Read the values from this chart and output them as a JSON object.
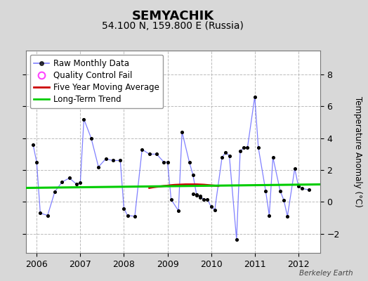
{
  "title": "SEMYACHIK",
  "subtitle": "54.100 N, 159.800 E (Russia)",
  "ylabel": "Temperature Anomaly (°C)",
  "watermark": "Berkeley Earth",
  "background_color": "#d8d8d8",
  "plot_bg_color": "#ffffff",
  "ylim": [
    -3.2,
    9.5
  ],
  "yticks": [
    -2,
    0,
    2,
    4,
    6,
    8
  ],
  "xlim": [
    2005.75,
    2012.5
  ],
  "raw_data": [
    [
      2005.917,
      3.6
    ],
    [
      2006.0,
      2.5
    ],
    [
      2006.083,
      -0.7
    ],
    [
      2006.25,
      -0.85
    ],
    [
      2006.417,
      0.65
    ],
    [
      2006.583,
      1.25
    ],
    [
      2006.75,
      1.5
    ],
    [
      2006.917,
      1.1
    ],
    [
      2007.0,
      1.2
    ],
    [
      2007.083,
      5.2
    ],
    [
      2007.25,
      4.0
    ],
    [
      2007.417,
      2.2
    ],
    [
      2007.583,
      2.7
    ],
    [
      2007.75,
      2.6
    ],
    [
      2007.917,
      2.6
    ],
    [
      2008.0,
      -0.4
    ],
    [
      2008.083,
      -0.85
    ],
    [
      2008.25,
      -0.9
    ],
    [
      2008.417,
      3.3
    ],
    [
      2008.583,
      3.0
    ],
    [
      2008.75,
      3.0
    ],
    [
      2008.917,
      2.5
    ],
    [
      2009.0,
      2.5
    ],
    [
      2009.083,
      0.15
    ],
    [
      2009.25,
      -0.55
    ],
    [
      2009.333,
      4.4
    ],
    [
      2009.5,
      2.5
    ],
    [
      2009.583,
      1.7
    ],
    [
      2009.667,
      0.45
    ],
    [
      2009.75,
      0.35
    ],
    [
      2009.833,
      0.15
    ],
    [
      2009.917,
      0.15
    ],
    [
      2010.0,
      -0.3
    ],
    [
      2010.083,
      -0.5
    ],
    [
      2010.25,
      2.8
    ],
    [
      2010.333,
      3.1
    ],
    [
      2010.417,
      2.9
    ],
    [
      2010.583,
      -2.35
    ],
    [
      2010.667,
      3.2
    ],
    [
      2010.75,
      3.4
    ],
    [
      2010.833,
      3.4
    ],
    [
      2011.0,
      6.6
    ],
    [
      2011.083,
      3.4
    ],
    [
      2011.25,
      0.7
    ],
    [
      2011.333,
      -0.85
    ],
    [
      2011.417,
      2.8
    ],
    [
      2011.583,
      0.7
    ],
    [
      2011.667,
      0.1
    ],
    [
      2011.75,
      -0.9
    ],
    [
      2011.917,
      2.1
    ],
    [
      2012.0,
      1.0
    ],
    [
      2012.083,
      0.85
    ],
    [
      2012.25,
      0.75
    ]
  ],
  "missing_data": [
    [
      2009.583,
      0.5
    ],
    [
      2009.667,
      0.4
    ],
    [
      2009.75,
      0.3
    ]
  ],
  "moving_avg": [
    [
      2008.583,
      0.88
    ],
    [
      2008.667,
      0.92
    ],
    [
      2008.75,
      0.95
    ],
    [
      2008.833,
      0.97
    ],
    [
      2008.917,
      1.0
    ],
    [
      2009.0,
      1.02
    ],
    [
      2009.083,
      1.05
    ],
    [
      2009.167,
      1.07
    ],
    [
      2009.25,
      1.08
    ],
    [
      2009.333,
      1.09
    ],
    [
      2009.417,
      1.1
    ],
    [
      2009.5,
      1.1
    ],
    [
      2009.583,
      1.1
    ],
    [
      2009.667,
      1.1
    ],
    [
      2009.75,
      1.09
    ],
    [
      2009.833,
      1.08
    ],
    [
      2009.917,
      1.06
    ],
    [
      2010.0,
      1.04
    ],
    [
      2010.083,
      1.02
    ],
    [
      2010.167,
      1.0
    ]
  ],
  "trend_x": [
    2005.75,
    2012.5
  ],
  "trend_y": [
    0.88,
    1.1
  ],
  "line_color": "#5555ff",
  "line_alpha": 0.75,
  "marker_color": "#000000",
  "moving_avg_color": "#cc0000",
  "trend_color": "#00cc00",
  "qc_color": "#ff44ff",
  "grid_color": "#bbbbbb",
  "grid_style": "--"
}
